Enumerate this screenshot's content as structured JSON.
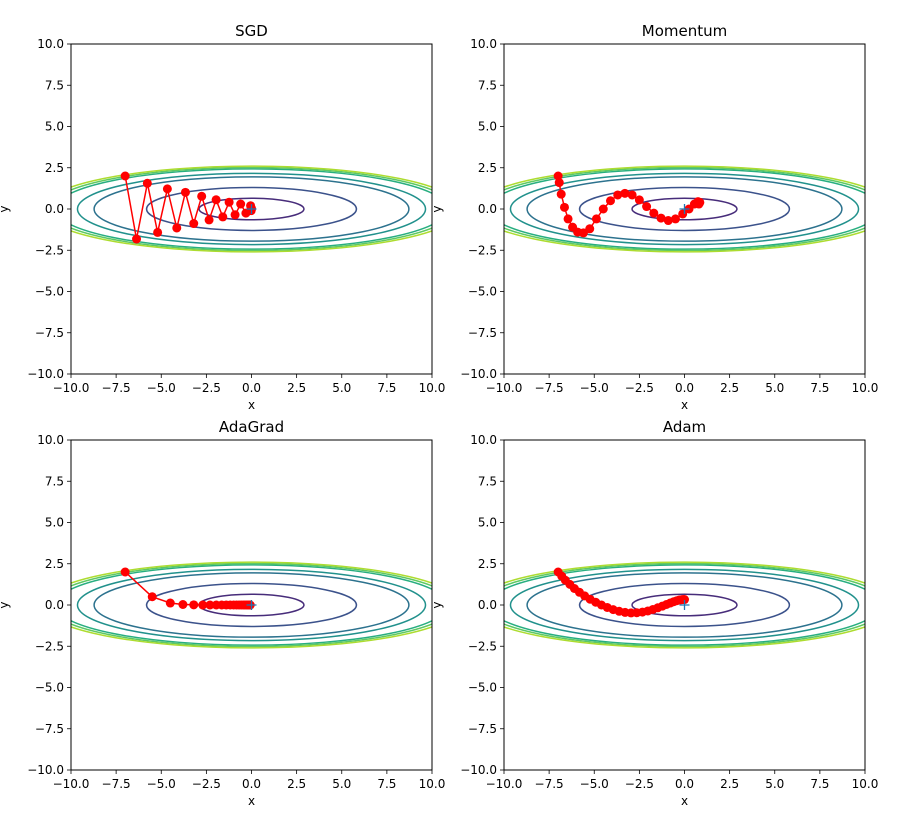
{
  "figure": {
    "background": "#ffffff"
  },
  "chart_data": [
    {
      "type": "line",
      "title": "SGD",
      "xlabel": "x",
      "ylabel": "y",
      "xlim": [
        -10,
        10
      ],
      "ylim": [
        -10,
        10
      ],
      "xticks": [
        -10,
        -7.5,
        -5,
        -2.5,
        0,
        2.5,
        5,
        7.5,
        10
      ],
      "xtick_labels": [
        "−10.0",
        "−7.5",
        "−5.0",
        "−2.5",
        "0.0",
        "2.5",
        "5.0",
        "7.5",
        "10.0"
      ],
      "yticks": [
        10,
        7.5,
        5,
        2.5,
        0,
        -2.5,
        -5,
        -7.5,
        -10
      ],
      "ytick_labels": [
        "10.0",
        "7.5",
        "5.0",
        "2.5",
        "0.0",
        "−2.5",
        "−5.0",
        "−7.5",
        "−10.0"
      ],
      "contour_levels": [
        0.05,
        0.2,
        0.45,
        0.55,
        0.7,
        0.75,
        0.8
      ],
      "contour_colors": [
        "#472c7a",
        "#3b528b",
        "#2c728e",
        "#21918c",
        "#28ae80",
        "#5ec962",
        "#addc30"
      ],
      "minimum": {
        "x": 0,
        "y": 0,
        "color": "#1f77b4"
      },
      "path_color": "#ff0000",
      "path": {
        "x": [
          -7.0,
          -6.37,
          -5.77,
          -5.2,
          -4.66,
          -4.14,
          -3.66,
          -3.2,
          -2.76,
          -2.35,
          -1.96,
          -1.59,
          -1.24,
          -0.91,
          -0.6,
          -0.31,
          -0.05,
          -0.02,
          -0.01,
          0.0
        ],
        "y": [
          2.0,
          -1.82,
          1.56,
          -1.42,
          1.22,
          -1.15,
          1.01,
          -0.88,
          0.77,
          -0.66,
          0.56,
          -0.48,
          0.41,
          -0.35,
          0.3,
          -0.25,
          0.2,
          -0.1,
          0.05,
          0.0
        ]
      }
    },
    {
      "type": "line",
      "title": "Momentum",
      "xlabel": "x",
      "ylabel": "y",
      "xlim": [
        -10,
        10
      ],
      "ylim": [
        -10,
        10
      ],
      "xticks": [
        -10,
        -7.5,
        -5,
        -2.5,
        0,
        2.5,
        5,
        7.5,
        10
      ],
      "xtick_labels": [
        "−10.0",
        "−7.5",
        "−5.0",
        "−2.5",
        "0.0",
        "2.5",
        "5.0",
        "7.5",
        "10.0"
      ],
      "yticks": [
        10,
        7.5,
        5,
        2.5,
        0,
        -2.5,
        -5,
        -7.5,
        -10
      ],
      "ytick_labels": [
        "10.0",
        "7.5",
        "5.0",
        "2.5",
        "0.0",
        "−2.5",
        "−5.0",
        "−7.5",
        "−10.0"
      ],
      "contour_levels": [
        0.05,
        0.2,
        0.45,
        0.55,
        0.7,
        0.75,
        0.8
      ],
      "contour_colors": [
        "#472c7a",
        "#3b528b",
        "#2c728e",
        "#21918c",
        "#28ae80",
        "#5ec962",
        "#addc30"
      ],
      "minimum": {
        "x": 0,
        "y": 0,
        "color": "#1f77b4"
      },
      "path_color": "#ff0000",
      "path": {
        "x": [
          -7.0,
          -6.94,
          -6.83,
          -6.65,
          -6.45,
          -6.2,
          -5.92,
          -5.6,
          -5.25,
          -4.88,
          -4.5,
          -4.1,
          -3.7,
          -3.3,
          -2.9,
          -2.5,
          -2.1,
          -1.7,
          -1.3,
          -0.9,
          -0.5,
          -0.1,
          0.25,
          0.55,
          0.75,
          0.85,
          0.8
        ],
        "y": [
          2.0,
          1.6,
          0.9,
          0.1,
          -0.6,
          -1.1,
          -1.4,
          -1.45,
          -1.2,
          -0.6,
          0.0,
          0.5,
          0.85,
          0.95,
          0.85,
          0.55,
          0.15,
          -0.25,
          -0.55,
          -0.7,
          -0.6,
          -0.3,
          0.0,
          0.3,
          0.45,
          0.4,
          0.3
        ]
      }
    },
    {
      "type": "line",
      "title": "AdaGrad",
      "xlabel": "x",
      "ylabel": "y",
      "xlim": [
        -10,
        10
      ],
      "ylim": [
        -10,
        10
      ],
      "xticks": [
        -10,
        -7.5,
        -5,
        -2.5,
        0,
        2.5,
        5,
        7.5,
        10
      ],
      "xtick_labels": [
        "−10.0",
        "−7.5",
        "−5.0",
        "−2.5",
        "0.0",
        "2.5",
        "5.0",
        "7.5",
        "10.0"
      ],
      "yticks": [
        10,
        7.5,
        5,
        2.5,
        0,
        -2.5,
        -5,
        -7.5,
        -10
      ],
      "ytick_labels": [
        "10.0",
        "7.5",
        "5.0",
        "2.5",
        "0.0",
        "−2.5",
        "−5.0",
        "−7.5",
        "−10.0"
      ],
      "contour_levels": [
        0.05,
        0.2,
        0.45,
        0.55,
        0.7,
        0.75,
        0.8
      ],
      "contour_colors": [
        "#472c7a",
        "#3b528b",
        "#2c728e",
        "#21918c",
        "#28ae80",
        "#5ec962",
        "#addc30"
      ],
      "minimum": {
        "x": 0,
        "y": 0,
        "color": "#1f77b4"
      },
      "path_color": "#ff0000",
      "path": {
        "x": [
          -7.0,
          -5.5,
          -4.5,
          -3.8,
          -3.2,
          -2.7,
          -2.3,
          -1.95,
          -1.65,
          -1.4,
          -1.18,
          -0.99,
          -0.83,
          -0.69,
          -0.57,
          -0.46,
          -0.37,
          -0.29,
          -0.22,
          -0.16,
          -0.11,
          -0.07
        ],
        "y": [
          2.0,
          0.5,
          0.12,
          0.03,
          0.01,
          0.0,
          0.0,
          0.0,
          0.0,
          0.0,
          0.0,
          0.0,
          0.0,
          0.0,
          0.0,
          0.0,
          0.0,
          0.0,
          0.0,
          0.0,
          0.0,
          0.0
        ]
      }
    },
    {
      "type": "line",
      "title": "Adam",
      "xlabel": "x",
      "ylabel": "y",
      "xlim": [
        -10,
        10
      ],
      "ylim": [
        -10,
        10
      ],
      "xticks": [
        -10,
        -7.5,
        -5,
        -2.5,
        0,
        2.5,
        5,
        7.5,
        10
      ],
      "xtick_labels": [
        "−10.0",
        "−7.5",
        "−5.0",
        "−2.5",
        "0.0",
        "2.5",
        "5.0",
        "7.5",
        "10.0"
      ],
      "yticks": [
        10,
        7.5,
        5,
        2.5,
        0,
        -2.5,
        -5,
        -7.5,
        -10
      ],
      "ytick_labels": [
        "10.0",
        "7.5",
        "5.0",
        "2.5",
        "0.0",
        "−2.5",
        "−5.0",
        "−7.5",
        "−10.0"
      ],
      "contour_levels": [
        0.05,
        0.2,
        0.45,
        0.55,
        0.7,
        0.75,
        0.8
      ],
      "contour_colors": [
        "#472c7a",
        "#3b528b",
        "#2c728e",
        "#21918c",
        "#28ae80",
        "#5ec962",
        "#addc30"
      ],
      "minimum": {
        "x": 0,
        "y": 0,
        "color": "#1f77b4"
      },
      "path_color": "#ff0000",
      "path": {
        "x": [
          -7.0,
          -6.8,
          -6.6,
          -6.35,
          -6.1,
          -5.82,
          -5.53,
          -5.23,
          -4.92,
          -4.6,
          -4.28,
          -3.95,
          -3.62,
          -3.29,
          -2.96,
          -2.64,
          -2.33,
          -2.03,
          -1.75,
          -1.48,
          -1.23,
          -1.0,
          -0.79,
          -0.6,
          -0.43,
          -0.29,
          -0.17,
          -0.08,
          0.0
        ],
        "y": [
          2.0,
          1.75,
          1.5,
          1.25,
          1.0,
          0.77,
          0.55,
          0.35,
          0.17,
          0.0,
          -0.15,
          -0.28,
          -0.38,
          -0.45,
          -0.48,
          -0.47,
          -0.43,
          -0.36,
          -0.27,
          -0.17,
          -0.07,
          0.03,
          0.12,
          0.2,
          0.26,
          0.3,
          0.32,
          0.33,
          0.33
        ]
      }
    }
  ]
}
